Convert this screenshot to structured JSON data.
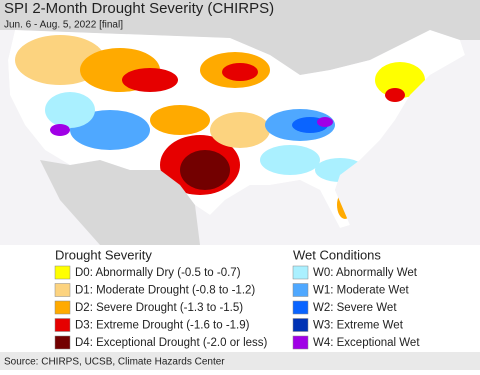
{
  "header": {
    "title": "SPI 2-Month Drought Severity (CHIRPS)",
    "subtitle": "Jun. 6 - Aug. 5, 2022 [final]"
  },
  "legend": {
    "drought": {
      "title": "Drought Severity",
      "items": [
        {
          "label": "D0: Abnormally Dry (-0.5 to -0.7)",
          "color": "#ffff00"
        },
        {
          "label": "D1: Moderate Drought (-0.8 to -1.2)",
          "color": "#fcd37f"
        },
        {
          "label": "D2: Severe Drought (-1.3 to -1.5)",
          "color": "#ffaa00"
        },
        {
          "label": "D3: Extreme Drought (-1.6 to -1.9)",
          "color": "#e60000"
        },
        {
          "label": "D4: Exceptional Drought (-2.0 or less)",
          "color": "#730000"
        }
      ]
    },
    "wet": {
      "title": "Wet Conditions",
      "items": [
        {
          "label": "W0: Abnormally Wet",
          "color": "#aaf0ff"
        },
        {
          "label": "W1: Moderate Wet",
          "color": "#4fa8ff"
        },
        {
          "label": "W2: Severe Wet",
          "color": "#0a64ff"
        },
        {
          "label": "W3: Extreme Wet",
          "color": "#0032b4"
        },
        {
          "label": "W4: Exceptional Wet",
          "color": "#a000e6"
        }
      ]
    }
  },
  "source": "Source: CHIRPS, UCSB, Climate Hazards Center"
}
